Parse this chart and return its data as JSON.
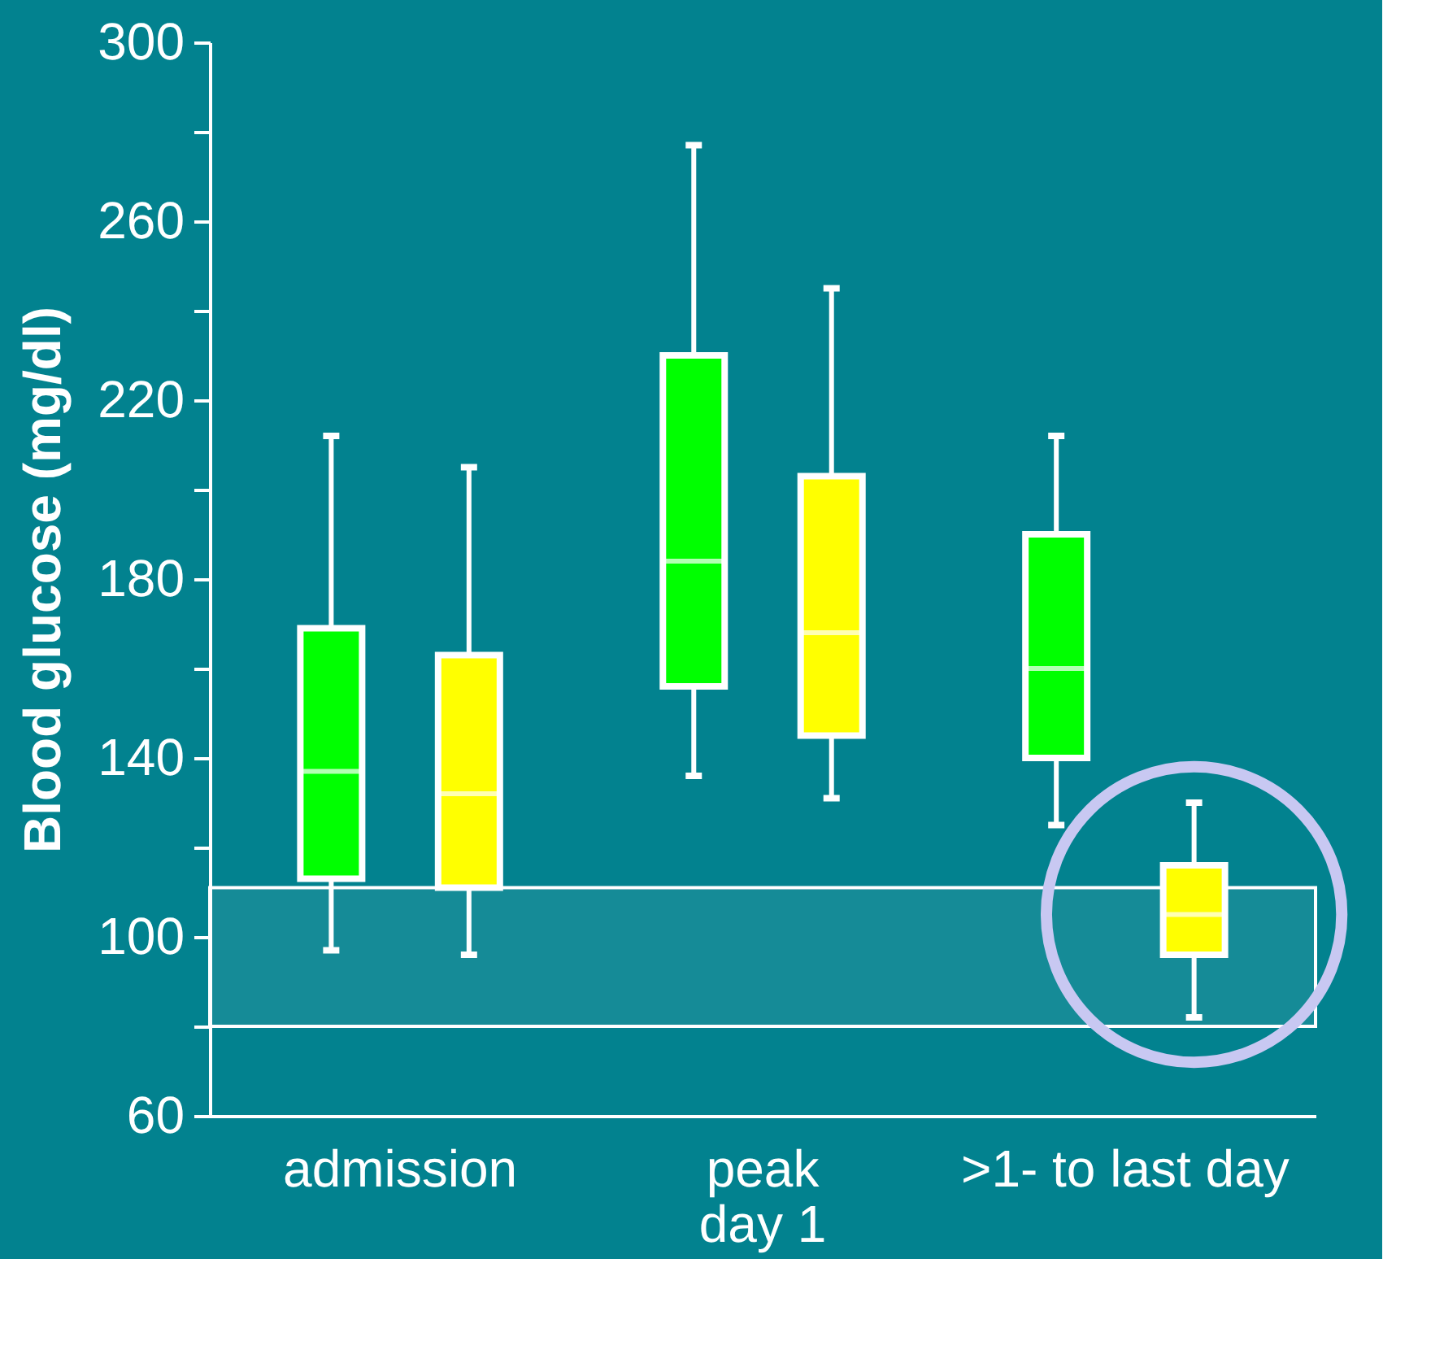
{
  "chart_data": {
    "type": "box",
    "ylabel": "Blood glucose (mg/dl)",
    "categories": [
      "admission",
      "peak\nday 1",
      ">1- to last day"
    ],
    "series": [
      {
        "color": "#00ff00",
        "boxes": [
          {
            "low": 97,
            "q1": 113,
            "median": 137,
            "q3": 169,
            "high": 212
          },
          {
            "low": 136,
            "q1": 156,
            "median": 184,
            "q3": 230,
            "high": 277
          },
          {
            "low": 125,
            "q1": 140,
            "median": 160,
            "q3": 190,
            "high": 212
          }
        ]
      },
      {
        "color": "#ffff00",
        "boxes": [
          {
            "low": 96,
            "q1": 111,
            "median": 132,
            "q3": 163,
            "high": 205
          },
          {
            "low": 131,
            "q1": 145,
            "median": 168,
            "q3": 203,
            "high": 245
          },
          {
            "low": 82,
            "q1": 96,
            "median": 105,
            "q3": 116,
            "high": 130
          }
        ]
      }
    ],
    "ylim": [
      60,
      300
    ],
    "yticks": [
      60,
      {
        "value": 80,
        "label": null
      },
      100,
      {
        "value": 120,
        "label": null
      },
      140,
      {
        "value": 160,
        "label": null
      },
      180,
      {
        "value": 200,
        "label": null
      },
      220,
      {
        "value": 240,
        "label": null
      },
      260,
      {
        "value": 280,
        "label": null
      },
      300
    ],
    "bands": [
      {
        "axis": "y",
        "from": 80,
        "to": 111,
        "color": "#ffffff"
      }
    ],
    "grid": false,
    "legend": false
  }
}
